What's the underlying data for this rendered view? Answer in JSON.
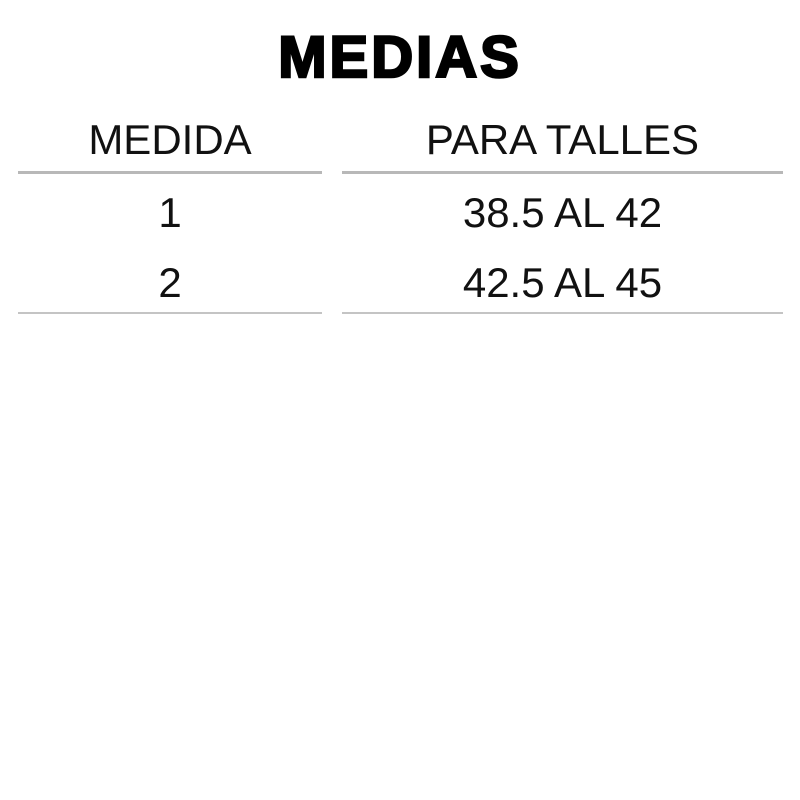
{
  "title": "MEDIAS",
  "table": {
    "headers": [
      "MEDIDA",
      "PARA TALLES"
    ],
    "rows": [
      [
        "1",
        "38.5 AL 42"
      ],
      [
        "2",
        "42.5 AL 45"
      ]
    ]
  },
  "colors": {
    "text": "#111111",
    "divider": "#b8b8b8"
  }
}
